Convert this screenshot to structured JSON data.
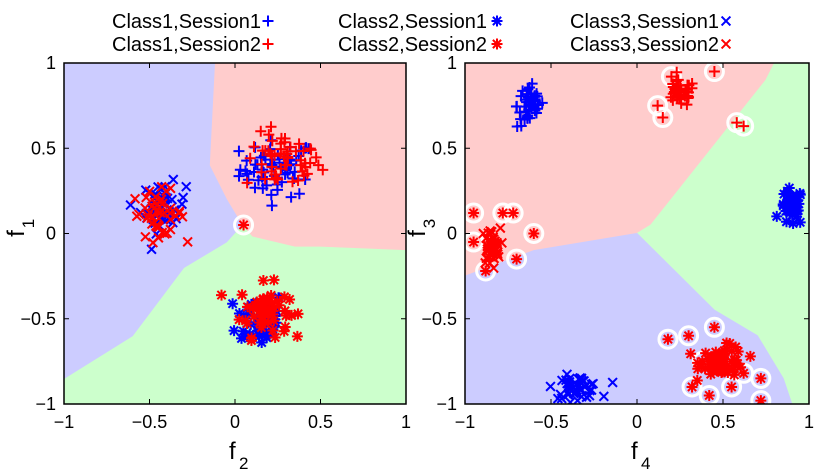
{
  "legend": {
    "placement": "top",
    "entries": [
      {
        "label": "Class1,Session1",
        "marker": "plus",
        "color": "#0000ff"
      },
      {
        "label": "Class2,Session1",
        "marker": "star",
        "color": "#0000ff"
      },
      {
        "label": "Class3,Session1",
        "marker": "cross",
        "color": "#0000ff"
      },
      {
        "label": "Class1,Session2",
        "marker": "plus",
        "color": "#ff0000"
      },
      {
        "label": "Class2,Session2",
        "marker": "star",
        "color": "#ff0000"
      },
      {
        "label": "Class3,Session2",
        "marker": "cross",
        "color": "#ff0000"
      }
    ]
  },
  "colors": {
    "session1": "#0000ff",
    "session2": "#ff0000",
    "region_class1": "#ffcccc",
    "region_class2": "#ccffcc",
    "region_class3": "#ccccff",
    "highlight_ring": "#ffffff"
  },
  "chart_data": [
    {
      "type": "scatter",
      "xlabel": "f",
      "xlabel_sub": "2",
      "ylabel": "f",
      "ylabel_sub": "1",
      "xlim": [
        -1,
        1
      ],
      "ylim": [
        -1,
        1
      ],
      "xticks": [
        -1,
        -0.5,
        0,
        0.5,
        1
      ],
      "yticks": [
        -1,
        -0.5,
        0,
        0.5,
        1
      ],
      "xtick_labels": [
        "−1",
        "−0.5",
        "0",
        "0.5",
        "1"
      ],
      "ytick_labels": [
        "−1",
        "−0.5",
        "0",
        "0.5",
        "1"
      ],
      "grid": false,
      "regions": [
        {
          "class": "Class1",
          "color": "#ffcccc",
          "polygon": [
            [
              -0.12,
              1
            ],
            [
              1,
              1
            ],
            [
              1,
              -0.1
            ],
            [
              0.5,
              -0.08
            ],
            [
              0.35,
              -0.08
            ],
            [
              0.1,
              -0.02
            ],
            [
              0.04,
              0.05
            ],
            [
              -0.05,
              0.2
            ],
            [
              -0.15,
              0.4
            ],
            [
              -0.12,
              1
            ]
          ]
        },
        {
          "class": "Class2",
          "color": "#ccffcc",
          "polygon": [
            [
              -1,
              -0.85
            ],
            [
              -0.6,
              -0.6
            ],
            [
              -0.3,
              -0.2
            ],
            [
              -0.05,
              -0.05
            ],
            [
              0.04,
              0.05
            ],
            [
              0.1,
              -0.02
            ],
            [
              0.35,
              -0.08
            ],
            [
              0.5,
              -0.08
            ],
            [
              1,
              -0.1
            ],
            [
              1,
              -1
            ],
            [
              -1,
              -1
            ]
          ]
        },
        {
          "class": "Class3",
          "color": "#ccccff",
          "polygon": [
            [
              -1,
              1
            ],
            [
              -0.12,
              1
            ],
            [
              -0.15,
              0.4
            ],
            [
              -0.05,
              0.2
            ],
            [
              0.04,
              0.05
            ],
            [
              -0.05,
              -0.05
            ],
            [
              -0.3,
              -0.2
            ],
            [
              -0.6,
              -0.6
            ],
            [
              -1,
              -0.85
            ]
          ]
        }
      ],
      "clusters": [
        {
          "class": "Class1",
          "session": 1,
          "marker": "plus",
          "center": [
            0.25,
            0.38
          ],
          "spread": [
            0.2,
            0.15
          ],
          "count": 60
        },
        {
          "class": "Class1",
          "session": 2,
          "marker": "plus",
          "center": [
            0.28,
            0.42
          ],
          "spread": [
            0.2,
            0.15
          ],
          "count": 55
        },
        {
          "class": "Class2",
          "session": 1,
          "marker": "star",
          "center": [
            0.15,
            -0.5
          ],
          "spread": [
            0.13,
            0.15
          ],
          "count": 55
        },
        {
          "class": "Class2",
          "session": 2,
          "marker": "star",
          "center": [
            0.17,
            -0.45
          ],
          "spread": [
            0.13,
            0.14
          ],
          "count": 55
        },
        {
          "class": "Class3",
          "session": 1,
          "marker": "cross",
          "center": [
            -0.42,
            0.15
          ],
          "spread": [
            0.12,
            0.13
          ],
          "count": 45
        },
        {
          "class": "Class3",
          "session": 2,
          "marker": "cross",
          "center": [
            -0.45,
            0.12
          ],
          "spread": [
            0.14,
            0.12
          ],
          "count": 45
        }
      ],
      "highlighted_points": [
        {
          "class": "Class2",
          "session": 2,
          "marker": "star",
          "x": 0.05,
          "y": 0.05
        }
      ]
    },
    {
      "type": "scatter",
      "xlabel": "f",
      "xlabel_sub": "4",
      "ylabel": "f",
      "ylabel_sub": "3",
      "xlim": [
        -1,
        1
      ],
      "ylim": [
        -1,
        1
      ],
      "xticks": [
        -1,
        -0.5,
        0,
        0.5,
        1
      ],
      "yticks": [
        -1,
        -0.5,
        0,
        0.5,
        1
      ],
      "xtick_labels": [
        "−1",
        "−0.5",
        "0",
        "0.5",
        "1"
      ],
      "ytick_labels": [
        "−1",
        "−0.5",
        "0",
        "0.5",
        "1"
      ],
      "grid": false,
      "regions": [
        {
          "class": "Class1",
          "color": "#ffcccc",
          "polygon": [
            [
              -1,
              1
            ],
            [
              0.8,
              1
            ],
            [
              0.75,
              0.9
            ],
            [
              0.08,
              0.05
            ],
            [
              0,
              0
            ],
            [
              -0.6,
              -0.1
            ],
            [
              -1,
              -0.25
            ]
          ]
        },
        {
          "class": "Class2",
          "color": "#ccffcc",
          "polygon": [
            [
              0.8,
              1
            ],
            [
              1,
              1
            ],
            [
              1,
              -1
            ],
            [
              0.9,
              -1
            ],
            [
              0.85,
              -0.85
            ],
            [
              0.7,
              -0.6
            ],
            [
              0.45,
              -0.45
            ],
            [
              0.2,
              -0.2
            ],
            [
              0,
              0
            ],
            [
              0.08,
              0.05
            ],
            [
              0.75,
              0.9
            ]
          ]
        },
        {
          "class": "Class3",
          "color": "#ccccff",
          "polygon": [
            [
              -1,
              -0.25
            ],
            [
              -0.6,
              -0.1
            ],
            [
              0,
              0
            ],
            [
              0.2,
              -0.2
            ],
            [
              0.45,
              -0.45
            ],
            [
              0.7,
              -0.6
            ],
            [
              0.85,
              -0.85
            ],
            [
              0.9,
              -1
            ],
            [
              -1,
              -1
            ]
          ]
        }
      ],
      "clusters": [
        {
          "class": "Class1",
          "session": 1,
          "marker": "plus",
          "center": [
            -0.62,
            0.75
          ],
          "spread": [
            0.07,
            0.12
          ],
          "count": 45
        },
        {
          "class": "Class1",
          "session": 2,
          "marker": "plus",
          "center": [
            0.25,
            0.82
          ],
          "spread": [
            0.08,
            0.07
          ],
          "count": 40
        },
        {
          "class": "Class2",
          "session": 1,
          "marker": "star",
          "center": [
            0.9,
            0.15
          ],
          "spread": [
            0.06,
            0.1
          ],
          "count": 35
        },
        {
          "class": "Class2",
          "session": 2,
          "marker": "star",
          "center": [
            0.5,
            -0.75
          ],
          "spread": [
            0.12,
            0.08
          ],
          "count": 60
        },
        {
          "class": "Class3",
          "session": 1,
          "marker": "cross",
          "center": [
            -0.35,
            -0.9
          ],
          "spread": [
            0.12,
            0.06
          ],
          "count": 45
        },
        {
          "class": "Class3",
          "session": 2,
          "marker": "cross",
          "center": [
            -0.85,
            -0.08
          ],
          "spread": [
            0.05,
            0.1
          ],
          "count": 45
        }
      ],
      "highlighted_points": [
        {
          "class": "Class1",
          "session": 2,
          "marker": "plus",
          "x": 0.15,
          "y": 0.68
        },
        {
          "class": "Class1",
          "session": 2,
          "marker": "plus",
          "x": 0.12,
          "y": 0.75
        },
        {
          "class": "Class1",
          "session": 2,
          "marker": "plus",
          "x": 0.58,
          "y": 0.65
        },
        {
          "class": "Class1",
          "session": 2,
          "marker": "plus",
          "x": 0.62,
          "y": 0.63
        },
        {
          "class": "Class1",
          "session": 2,
          "marker": "plus",
          "x": 0.2,
          "y": 0.92
        },
        {
          "class": "Class1",
          "session": 2,
          "marker": "plus",
          "x": 0.45,
          "y": 0.95
        },
        {
          "class": "Class2",
          "session": 2,
          "marker": "star",
          "x": -0.95,
          "y": 0.12
        },
        {
          "class": "Class2",
          "session": 2,
          "marker": "star",
          "x": -0.78,
          "y": 0.12
        },
        {
          "class": "Class2",
          "session": 2,
          "marker": "star",
          "x": -0.72,
          "y": 0.12
        },
        {
          "class": "Class2",
          "session": 2,
          "marker": "star",
          "x": -0.95,
          "y": -0.05
        },
        {
          "class": "Class2",
          "session": 2,
          "marker": "star",
          "x": -0.7,
          "y": -0.15
        },
        {
          "class": "Class2",
          "session": 2,
          "marker": "star",
          "x": -0.6,
          "y": 0.0
        },
        {
          "class": "Class2",
          "session": 2,
          "marker": "star",
          "x": -0.88,
          "y": -0.22
        },
        {
          "class": "Class2",
          "session": 2,
          "marker": "star",
          "x": 0.18,
          "y": -0.62
        },
        {
          "class": "Class2",
          "session": 2,
          "marker": "star",
          "x": 0.3,
          "y": -0.6
        },
        {
          "class": "Class2",
          "session": 2,
          "marker": "star",
          "x": 0.32,
          "y": -0.9
        },
        {
          "class": "Class2",
          "session": 2,
          "marker": "star",
          "x": 0.42,
          "y": -0.95
        },
        {
          "class": "Class2",
          "session": 2,
          "marker": "star",
          "x": 0.38,
          "y": -0.75
        },
        {
          "class": "Class2",
          "session": 2,
          "marker": "star",
          "x": 0.62,
          "y": -0.82
        },
        {
          "class": "Class2",
          "session": 2,
          "marker": "star",
          "x": 0.72,
          "y": -0.85
        },
        {
          "class": "Class2",
          "session": 2,
          "marker": "star",
          "x": 0.72,
          "y": -0.98
        },
        {
          "class": "Class2",
          "session": 2,
          "marker": "star",
          "x": 0.45,
          "y": -0.55
        },
        {
          "class": "Class2",
          "session": 2,
          "marker": "star",
          "x": 0.55,
          "y": -0.9
        }
      ]
    }
  ]
}
